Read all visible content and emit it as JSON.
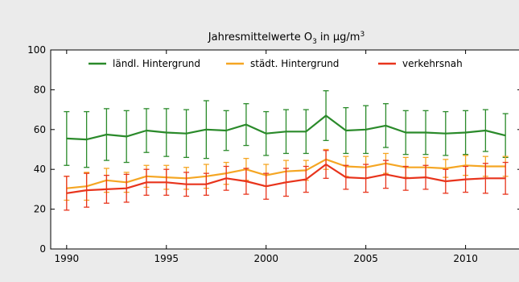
{
  "chart_data": {
    "type": "line",
    "title": "Jahresmittelwerte O",
    "title_subscript": "3",
    "title_unit": "in µg/m",
    "title_unit_superscript": "3",
    "xlabel": "",
    "ylabel": "",
    "xlim": [
      1989.2,
      2012.8
    ],
    "ylim": [
      0,
      100
    ],
    "x_ticks": [
      1990,
      1995,
      2000,
      2005,
      2010
    ],
    "y_ticks": [
      0,
      20,
      40,
      60,
      80,
      100
    ],
    "grid": false,
    "legend_position": "top",
    "x": [
      1990,
      1991,
      1992,
      1993,
      1994,
      1995,
      1996,
      1997,
      1998,
      1999,
      2000,
      2001,
      2002,
      2003,
      2004,
      2005,
      2006,
      2007,
      2008,
      2009,
      2010,
      2011,
      2012
    ],
    "series": [
      {
        "name": "ländl. Hintergrund",
        "color": "#2a8a2a",
        "values": [
          55.5,
          55,
          57.5,
          56.5,
          59.5,
          58.5,
          58,
          60,
          59.5,
          62.5,
          58,
          59,
          59,
          67,
          59.5,
          60,
          62,
          58.5,
          58.5,
          58,
          58.5,
          59.5,
          57
        ],
        "errors": [
          13.5,
          14,
          13,
          13,
          11,
          12,
          12,
          14.5,
          10,
          10.5,
          11,
          11,
          11,
          12.5,
          11.5,
          12,
          11,
          11,
          11,
          11,
          11,
          10.5,
          11
        ]
      },
      {
        "name": "städt. Hintergrund",
        "color": "#f5a623",
        "values": [
          30.5,
          31.5,
          34.5,
          33.5,
          36.5,
          36,
          35.5,
          36.5,
          38,
          40,
          37,
          39,
          39.5,
          45,
          41.5,
          41,
          43,
          41,
          41,
          40.5,
          42,
          41.5,
          41.5
        ],
        "errors": [
          6,
          7,
          6,
          5,
          5.5,
          6,
          5.5,
          6,
          5.5,
          5.5,
          5.5,
          5.5,
          5,
          5,
          5,
          5.5,
          5,
          5,
          5,
          4.5,
          5,
          5,
          5
        ]
      },
      {
        "name": "verkehrsnah",
        "color": "#e8341c",
        "values": [
          28,
          29.5,
          30,
          30.5,
          33.5,
          33.5,
          32.5,
          32.5,
          35.5,
          34,
          31.5,
          33.5,
          35,
          42.5,
          36,
          35.5,
          37.5,
          35.5,
          36,
          34,
          35,
          35.5,
          35.5
        ],
        "errors": [
          8.5,
          8.5,
          7,
          7,
          6.5,
          6.5,
          6,
          5.5,
          6,
          6.5,
          6.5,
          7,
          6.5,
          7,
          6,
          7,
          7,
          6,
          6,
          6,
          6.5,
          7.5,
          8
        ]
      }
    ]
  }
}
